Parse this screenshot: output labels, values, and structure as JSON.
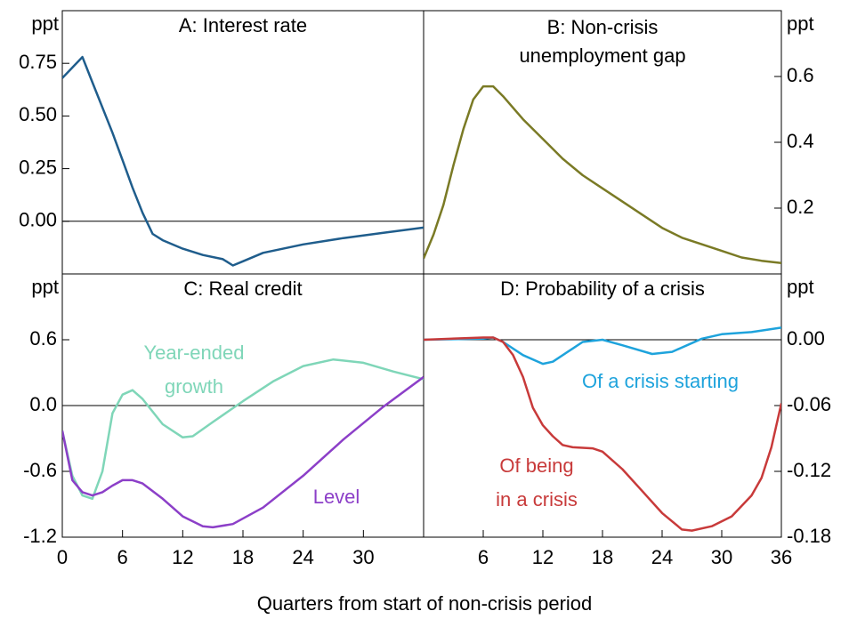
{
  "xlabel": "Quarters from start of non-crisis period",
  "chart_data": [
    {
      "type": "line",
      "title": "A: Interest rate",
      "yunit": "ppt",
      "yaxis_side": "left",
      "xlim": [
        0,
        36
      ],
      "ylim": [
        -0.25,
        1.0
      ],
      "yticks": [
        {
          "value": 0,
          "label": "0.00"
        },
        {
          "value": 0.25,
          "label": "0.25"
        },
        {
          "value": 0.5,
          "label": "0.50"
        },
        {
          "value": 0.75,
          "label": "0.75"
        }
      ],
      "zero_line": true,
      "series": [
        {
          "color": "#1f5d8c",
          "x": [
            0,
            2,
            3,
            5,
            6,
            7,
            8,
            9,
            10,
            12,
            14,
            16,
            17,
            18,
            20,
            24,
            28,
            32,
            36
          ],
          "values": [
            0.68,
            0.78,
            0.66,
            0.42,
            0.29,
            0.16,
            0.04,
            -0.06,
            -0.09,
            -0.13,
            -0.16,
            -0.18,
            -0.21,
            -0.19,
            -0.15,
            -0.11,
            -0.08,
            -0.055,
            -0.03
          ]
        }
      ]
    },
    {
      "type": "line",
      "title": [
        "B: Non-crisis",
        "unemployment gap"
      ],
      "yunit": "ppt",
      "yaxis_side": "right",
      "xlim": [
        0,
        36
      ],
      "ylim": [
        0,
        0.8
      ],
      "yticks": [
        0.2,
        0.4,
        0.6
      ],
      "zero_line": false,
      "series": [
        {
          "color": "#7a7a25",
          "x": [
            0,
            1,
            2,
            3,
            4,
            5,
            6,
            7,
            8,
            10,
            12,
            14,
            16,
            18,
            20,
            22,
            24,
            26,
            28,
            30,
            32,
            34,
            36
          ],
          "values": [
            0.047,
            0.12,
            0.21,
            0.33,
            0.44,
            0.53,
            0.57,
            0.57,
            0.54,
            0.47,
            0.41,
            0.35,
            0.3,
            0.26,
            0.22,
            0.18,
            0.14,
            0.11,
            0.09,
            0.07,
            0.05,
            0.04,
            0.033
          ]
        }
      ]
    },
    {
      "type": "line",
      "title": "C: Real credit",
      "yunit": "ppt",
      "yaxis_side": "left",
      "xlim": [
        0,
        36
      ],
      "ylim": [
        -1.2,
        1.2
      ],
      "yticks": [
        -1.2,
        -0.6,
        {
          "value": 0,
          "label": "0.0"
        },
        0.6
      ],
      "xticks": [
        0,
        6,
        12,
        18,
        24,
        30
      ],
      "zero_line": true,
      "series": [
        {
          "name": "Year-ended growth",
          "color": "#7fd6b8",
          "x": [
            0,
            1,
            2,
            3,
            4,
            5,
            6,
            7,
            8,
            10,
            12,
            13,
            15,
            18,
            21,
            24,
            27,
            30,
            33,
            36
          ],
          "values": [
            -0.23,
            -0.64,
            -0.82,
            -0.85,
            -0.6,
            -0.07,
            0.1,
            0.14,
            0.06,
            -0.17,
            -0.29,
            -0.28,
            -0.15,
            0.04,
            0.22,
            0.36,
            0.42,
            0.39,
            0.31,
            0.24
          ]
        },
        {
          "name": "Level",
          "color": "#8c3fc8",
          "x": [
            0,
            1,
            2,
            3,
            4,
            5,
            6,
            7,
            8,
            10,
            12,
            14,
            15,
            17,
            20,
            24,
            28,
            32,
            36
          ],
          "values": [
            -0.23,
            -0.68,
            -0.79,
            -0.82,
            -0.79,
            -0.73,
            -0.68,
            -0.68,
            -0.71,
            -0.85,
            -1.01,
            -1.1,
            -1.11,
            -1.08,
            -0.93,
            -0.64,
            -0.31,
            -0.01,
            0.26
          ]
        }
      ]
    },
    {
      "type": "line",
      "title": "D: Probability of a crisis",
      "yunit": "ppt",
      "yaxis_side": "right",
      "xlim": [
        0,
        36
      ],
      "ylim": [
        -0.18,
        0.06
      ],
      "yticks": [
        -0.18,
        -0.12,
        -0.06,
        {
          "value": 0,
          "label": "0.00"
        }
      ],
      "xticks": [
        6,
        12,
        18,
        24,
        30,
        36
      ],
      "zero_line": true,
      "series": [
        {
          "name": "Of a crisis starting",
          "color": "#1ea3dc",
          "x": [
            0,
            6,
            7,
            8,
            10,
            12,
            13,
            15,
            16,
            18,
            20,
            23,
            25,
            28,
            30,
            33,
            36
          ],
          "values": [
            0,
            0.001,
            0.002,
            -0.002,
            -0.014,
            -0.022,
            -0.02,
            -0.008,
            -0.002,
            0,
            -0.005,
            -0.013,
            -0.011,
            0.001,
            0.005,
            0.007,
            0.011
          ]
        },
        {
          "name": "Of being in a crisis",
          "color": "#c83a3a",
          "x": [
            0,
            6,
            7,
            8,
            9,
            10,
            11,
            12,
            13,
            14,
            15,
            17,
            18,
            20,
            22,
            24,
            26,
            27,
            29,
            31,
            33,
            34,
            35,
            36
          ],
          "values": [
            0,
            0.002,
            0.002,
            -0.002,
            -0.014,
            -0.034,
            -0.062,
            -0.078,
            -0.088,
            -0.096,
            -0.098,
            -0.099,
            -0.102,
            -0.118,
            -0.138,
            -0.158,
            -0.173,
            -0.174,
            -0.17,
            -0.161,
            -0.142,
            -0.126,
            -0.098,
            -0.058
          ]
        }
      ]
    }
  ]
}
